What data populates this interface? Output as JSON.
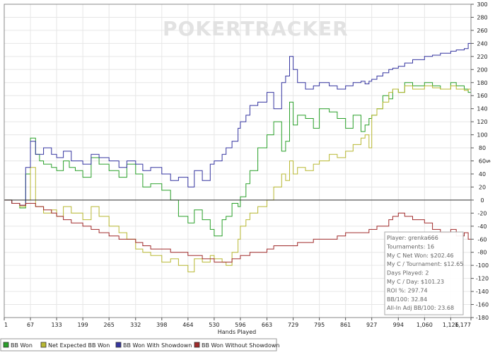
{
  "chart_data": {
    "type": "line",
    "watermark": "POKERTRACKER",
    "xlabel": "Hands Played",
    "ylabel": "$",
    "xlim": [
      1,
      1177
    ],
    "ylim": [
      -180,
      300
    ],
    "x_ticks": [
      1,
      67,
      133,
      199,
      265,
      332,
      398,
      464,
      530,
      596,
      663,
      729,
      795,
      861,
      927,
      994,
      1060,
      1126,
      1177
    ],
    "x_tick_labels": [
      "1",
      "67",
      "133",
      "199",
      "265",
      "332",
      "398",
      "464",
      "530",
      "596",
      "663",
      "729",
      "795",
      "861",
      "927",
      "994",
      "1,060",
      "1,126",
      "1,177"
    ],
    "y_ticks": [
      300,
      280,
      260,
      240,
      220,
      200,
      180,
      160,
      140,
      120,
      100,
      80,
      60,
      40,
      20,
      0,
      -20,
      -40,
      -60,
      -80,
      -100,
      -120,
      -140,
      -160,
      -180
    ],
    "grid": true,
    "legend_position": "bottom",
    "series": [
      {
        "name": "BB Won",
        "color": "#2aa02a",
        "x": [
          1,
          20,
          40,
          55,
          67,
          80,
          90,
          100,
          120,
          133,
          150,
          165,
          180,
          199,
          220,
          240,
          265,
          290,
          310,
          332,
          350,
          370,
          398,
          420,
          440,
          464,
          480,
          500,
          520,
          530,
          550,
          560,
          575,
          590,
          596,
          610,
          620,
          640,
          663,
          680,
          700,
          710,
          720,
          729,
          740,
          760,
          780,
          795,
          820,
          840,
          861,
          880,
          900,
          910,
          920,
          927,
          940,
          955,
          970,
          980,
          994,
          1010,
          1030,
          1060,
          1080,
          1100,
          1126,
          1140,
          1160,
          1170,
          1177
        ],
        "values": [
          0,
          -5,
          -12,
          40,
          95,
          70,
          60,
          55,
          50,
          45,
          60,
          50,
          45,
          35,
          65,
          55,
          45,
          35,
          55,
          40,
          20,
          25,
          15,
          0,
          -25,
          -35,
          -15,
          -30,
          -45,
          -55,
          -30,
          -25,
          -5,
          -10,
          5,
          25,
          45,
          80,
          100,
          120,
          75,
          90,
          150,
          115,
          130,
          125,
          110,
          140,
          135,
          125,
          110,
          130,
          105,
          115,
          125,
          130,
          140,
          160,
          155,
          170,
          165,
          180,
          175,
          180,
          175,
          170,
          180,
          175,
          170,
          165,
          175
        ]
      },
      {
        "name": "Net Expected BB Won",
        "color": "#b8b832",
        "x": [
          1,
          20,
          40,
          55,
          67,
          80,
          100,
          120,
          133,
          150,
          170,
          199,
          220,
          240,
          265,
          290,
          310,
          332,
          350,
          370,
          398,
          420,
          440,
          464,
          480,
          500,
          520,
          530,
          550,
          560,
          575,
          590,
          596,
          610,
          620,
          640,
          663,
          680,
          700,
          710,
          720,
          729,
          740,
          760,
          780,
          795,
          820,
          840,
          861,
          880,
          900,
          910,
          920,
          927,
          940,
          955,
          970,
          980,
          994,
          1010,
          1030,
          1060,
          1080,
          1100,
          1126,
          1140,
          1160,
          1170,
          1177
        ],
        "values": [
          0,
          -5,
          -10,
          0,
          50,
          -10,
          -20,
          -15,
          -25,
          -10,
          -20,
          -30,
          -10,
          -25,
          -40,
          -50,
          -60,
          -75,
          -80,
          -85,
          -95,
          -90,
          -100,
          -110,
          -90,
          -95,
          -85,
          -90,
          -95,
          -100,
          -80,
          -60,
          -40,
          -30,
          -20,
          -10,
          0,
          20,
          40,
          30,
          60,
          40,
          50,
          45,
          55,
          60,
          70,
          65,
          75,
          85,
          95,
          100,
          80,
          130,
          140,
          150,
          165,
          170,
          165,
          175,
          170,
          175,
          172,
          170,
          175,
          170,
          168,
          170,
          172
        ]
      },
      {
        "name": "BB Won With Showdown",
        "color": "#3535a0",
        "x": [
          1,
          20,
          40,
          55,
          67,
          80,
          100,
          120,
          133,
          150,
          170,
          199,
          220,
          240,
          265,
          290,
          310,
          332,
          350,
          370,
          398,
          420,
          440,
          464,
          480,
          500,
          520,
          530,
          550,
          560,
          575,
          590,
          596,
          610,
          620,
          640,
          663,
          680,
          700,
          710,
          720,
          729,
          740,
          760,
          780,
          795,
          820,
          840,
          861,
          880,
          900,
          910,
          920,
          927,
          940,
          955,
          970,
          980,
          994,
          1010,
          1030,
          1060,
          1080,
          1100,
          1126,
          1140,
          1160,
          1170,
          1177
        ],
        "values": [
          0,
          -5,
          -8,
          50,
          90,
          70,
          80,
          70,
          65,
          75,
          60,
          55,
          70,
          65,
          60,
          50,
          60,
          55,
          45,
          50,
          40,
          30,
          35,
          20,
          45,
          30,
          55,
          60,
          70,
          80,
          90,
          110,
          120,
          130,
          145,
          150,
          165,
          140,
          180,
          190,
          220,
          200,
          180,
          170,
          175,
          180,
          175,
          170,
          175,
          180,
          182,
          178,
          182,
          185,
          190,
          195,
          200,
          202,
          205,
          210,
          215,
          220,
          222,
          225,
          228,
          230,
          232,
          240,
          242
        ]
      },
      {
        "name": "BB Won Without Showdown",
        "color": "#a02b2b",
        "x": [
          1,
          20,
          40,
          55,
          67,
          80,
          100,
          120,
          133,
          150,
          170,
          199,
          220,
          240,
          265,
          290,
          310,
          332,
          350,
          370,
          398,
          420,
          440,
          464,
          480,
          500,
          520,
          530,
          550,
          560,
          575,
          590,
          596,
          610,
          620,
          640,
          663,
          680,
          700,
          720,
          740,
          760,
          780,
          795,
          820,
          840,
          861,
          880,
          900,
          920,
          940,
          955,
          970,
          980,
          994,
          1010,
          1030,
          1060,
          1080,
          1100,
          1126,
          1140,
          1160,
          1170,
          1177
        ],
        "values": [
          0,
          -5,
          -8,
          -5,
          -5,
          -10,
          -15,
          -20,
          -25,
          -30,
          -35,
          -40,
          -45,
          -50,
          -55,
          -60,
          -60,
          -65,
          -70,
          -75,
          -75,
          -80,
          -80,
          -85,
          -85,
          -90,
          -90,
          -95,
          -95,
          -95,
          -90,
          -90,
          -85,
          -85,
          -80,
          -80,
          -75,
          -70,
          -70,
          -70,
          -65,
          -65,
          -60,
          -60,
          -60,
          -55,
          -50,
          -50,
          -50,
          -45,
          -40,
          -40,
          -30,
          -25,
          -20,
          -25,
          -30,
          -35,
          -45,
          -50,
          -45,
          -55,
          -50,
          -60,
          -62
        ]
      }
    ]
  },
  "info_box": {
    "lines": [
      "Player: grenka666",
      "Tournaments: 16",
      "My C Net Won: $202.46",
      "My C / Tournament: $12.65",
      "Days Played: 2",
      "My C / Day: $101.23",
      "ROI %: 297.74",
      "BB/100: 32.84",
      "All-In Adj BB/100: 23.68"
    ]
  }
}
